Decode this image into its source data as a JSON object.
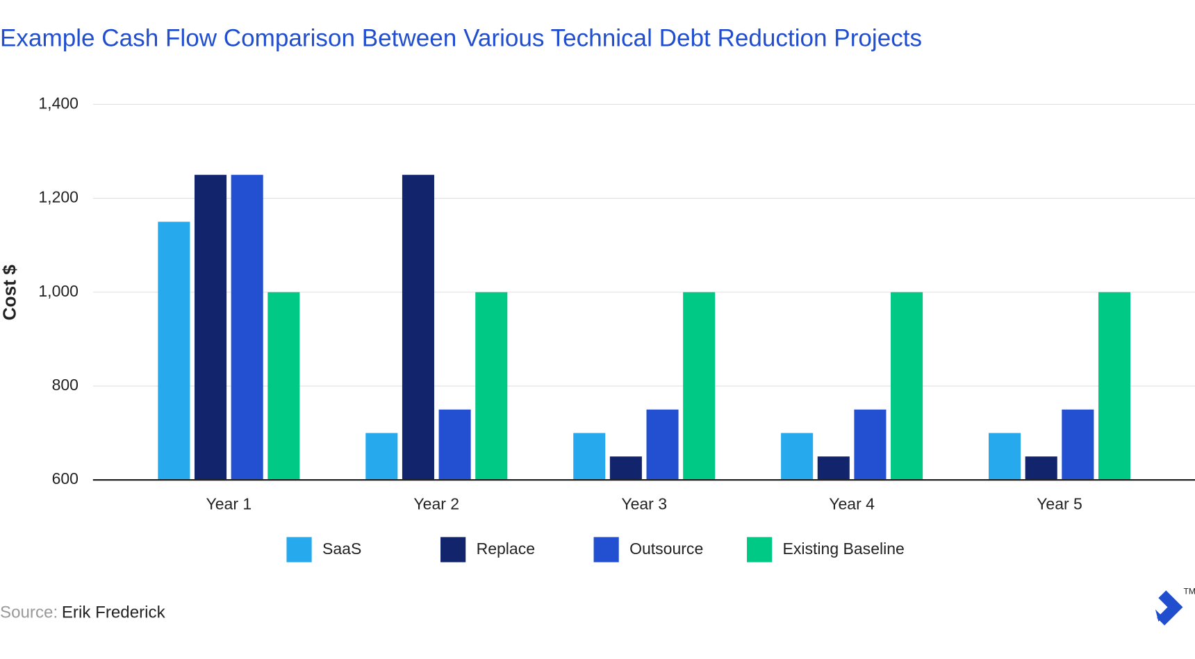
{
  "chart_data": {
    "type": "bar",
    "title": "Example Cash Flow Comparison Between Various Technical Debt Reduction Projects",
    "ylabel": "Cost $",
    "categories": [
      "Year 1",
      "Year 2",
      "Year 3",
      "Year 4",
      "Year 5"
    ],
    "series": [
      {
        "name": "SaaS",
        "color": "#27aaed",
        "values": [
          1150,
          700,
          700,
          700,
          700
        ]
      },
      {
        "name": "Replace",
        "color": "#12246b",
        "values": [
          1250,
          1250,
          650,
          650,
          650
        ]
      },
      {
        "name": "Outsource",
        "color": "#2250d0",
        "values": [
          1250,
          750,
          750,
          750,
          750
        ]
      },
      {
        "name": "Existing Baseline",
        "color": "#00c985",
        "values": [
          1000,
          1000,
          1000,
          1000,
          1000
        ]
      }
    ],
    "ylim": [
      600,
      1400
    ],
    "yticks": [
      600,
      800,
      {
        "value": 1000,
        "label": "1,000"
      },
      {
        "value": 1200,
        "label": "1,200"
      },
      {
        "value": 1400,
        "label": "1,400"
      }
    ],
    "grid": true,
    "legend": "bottom",
    "source_label": "Source:",
    "source": "Erik Frederick",
    "logo_mark": "TM"
  }
}
